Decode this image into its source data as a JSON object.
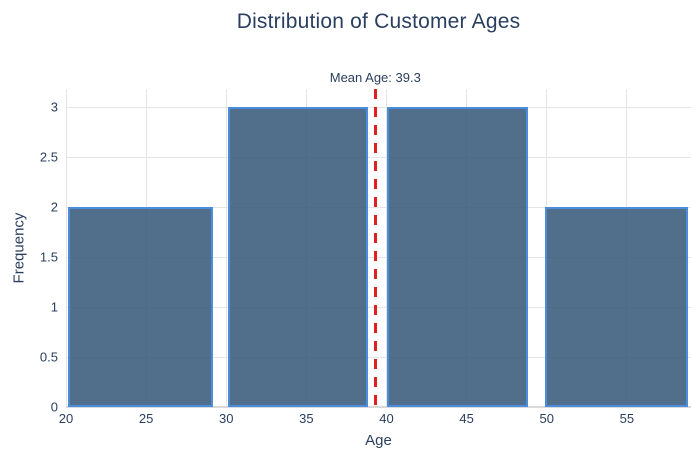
{
  "chart_data": {
    "type": "bar",
    "chart_kind": "histogram",
    "title": "Distribution of Customer Ages",
    "xlabel": "Age",
    "ylabel": "Frequency",
    "xlim": [
      20,
      59
    ],
    "ylim": [
      0,
      3.18
    ],
    "x_ticks": [
      20,
      25,
      30,
      35,
      40,
      45,
      50,
      55
    ],
    "y_ticks": [
      0,
      0.5,
      1,
      1.5,
      2,
      2.5,
      3
    ],
    "grid": true,
    "legend": false,
    "bin_edges": [
      20,
      29.75,
      39.5,
      49.25,
      59
    ],
    "counts": [
      2,
      3,
      3,
      2
    ],
    "bars_draw": [
      {
        "x0": 20.1,
        "x1": 29.2,
        "y": 2
      },
      {
        "x0": 30.1,
        "x1": 38.85,
        "y": 3
      },
      {
        "x0": 40.0,
        "x1": 48.8,
        "y": 3
      },
      {
        "x0": 49.9,
        "x1": 58.8,
        "y": 2
      }
    ],
    "mean_line": {
      "x": 39.3,
      "label": "Mean Age: 39.3",
      "style": "dashed"
    },
    "colors": {
      "bar_fill": "rgba(52,86,120,0.86)",
      "bar_border": "#4a8ddc",
      "mean_line": "#e02020",
      "grid": "#e5e5e5",
      "zero_line": "#d9d9d9",
      "text": "#2a3f5f",
      "background": "#ffffff"
    }
  }
}
